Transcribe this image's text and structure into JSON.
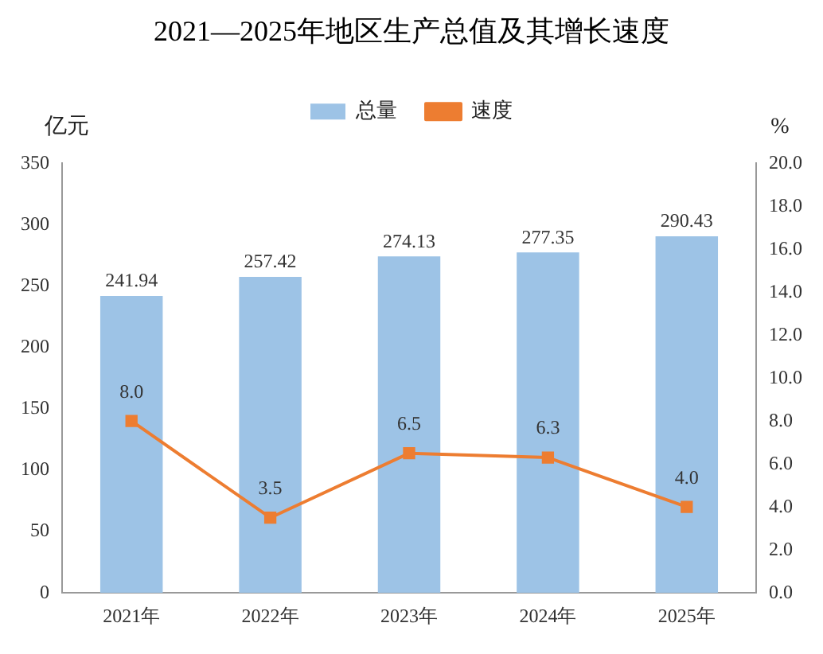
{
  "chart_data": {
    "type": "bar",
    "title": "2021—2025年地区生产总值及其增长速度",
    "categories": [
      "2021年",
      "2022年",
      "2023年",
      "2024年",
      "2025年"
    ],
    "ylabel": "亿元",
    "y2label": "%",
    "series": [
      {
        "name": "总量",
        "color": "#9dc3e6",
        "values": [
          241.94,
          257.42,
          274.13,
          277.35,
          290.43
        ],
        "value_labels": [
          "241.94",
          "257.42",
          "274.13",
          "277.35",
          "290.43"
        ]
      },
      {
        "name": "速度",
        "type": "line",
        "axis": "y2",
        "color": "#ed7d31",
        "marker": "square",
        "values": [
          8.0,
          3.5,
          6.5,
          6.3,
          4.0
        ],
        "value_labels": [
          "8.0",
          "3.5",
          "6.5",
          "6.3",
          "4.0"
        ]
      }
    ],
    "ylim": [
      0,
      350
    ],
    "yticks": [
      0,
      50,
      100,
      150,
      200,
      250,
      300,
      350
    ],
    "y2lim": [
      0,
      20
    ],
    "y2ticks": [
      {
        "value": 0,
        "label": "0.0"
      },
      {
        "value": 2,
        "label": "2.0"
      },
      {
        "value": 4,
        "label": "4.0"
      },
      {
        "value": 6,
        "label": "6.0"
      },
      {
        "value": 8,
        "label": "8.0"
      },
      {
        "value": 10,
        "label": "10.0"
      },
      {
        "value": 12,
        "label": "12.0"
      },
      {
        "value": 14,
        "label": "14.0"
      },
      {
        "value": 16,
        "label": "16.0"
      },
      {
        "value": 18,
        "label": "18.0"
      },
      {
        "value": 20,
        "label": "20.0"
      }
    ],
    "legend": "top",
    "grid": false
  }
}
